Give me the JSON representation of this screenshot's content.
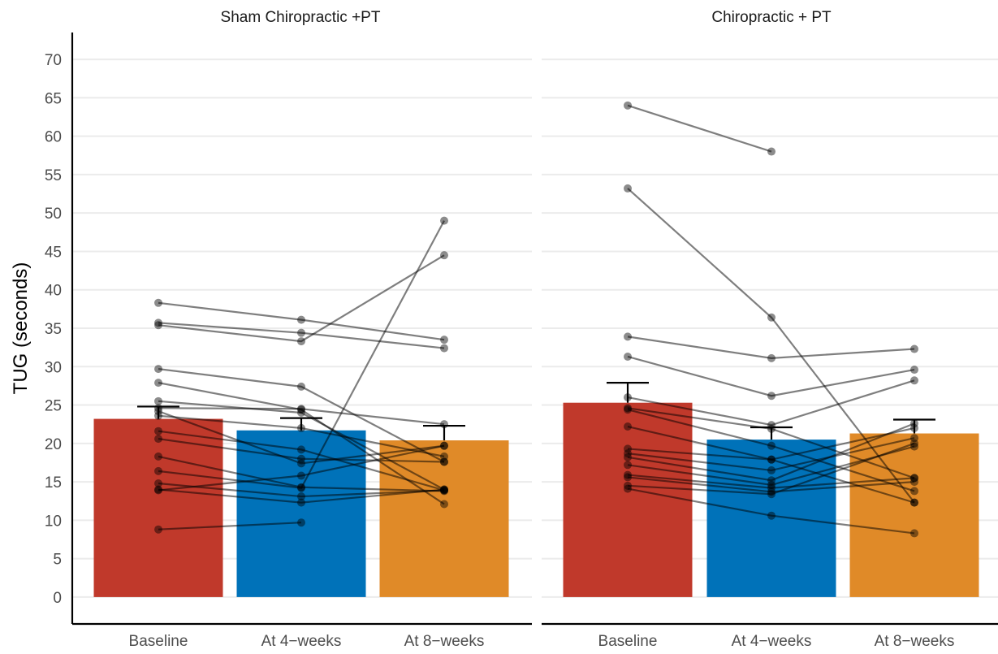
{
  "chart_data": {
    "type": "bar",
    "ylabel": "TUG (seconds)",
    "ylim": [
      -3.5,
      73.5
    ],
    "yticks": [
      0,
      5,
      10,
      15,
      20,
      25,
      30,
      35,
      40,
      45,
      50,
      55,
      60,
      65,
      70
    ],
    "grid": "horizontal",
    "categories": [
      "Baseline",
      "At 4−weeks",
      "At 8−weeks"
    ],
    "colors": {
      "Baseline": "#C0392B",
      "At 4−weeks": "#0072B9",
      "At 8−weeks": "#E08A28"
    },
    "facets": [
      {
        "title": "Sham Chiropractic +PT",
        "means": [
          23.2,
          21.7,
          20.4
        ],
        "error_upper": [
          24.8,
          23.3,
          22.3
        ],
        "subjects": [
          [
            38.3,
            36.1,
            33.5
          ],
          [
            35.7,
            34.4,
            32.4
          ],
          [
            35.4,
            33.3,
            44.5
          ],
          [
            29.7,
            27.4,
            17.6
          ],
          [
            27.9,
            24.4,
            12.1
          ],
          [
            25.5,
            24.0,
            14.0
          ],
          [
            24.6,
            24.5,
            22.5
          ],
          [
            24.2,
            17.4,
            19.7
          ],
          [
            23.6,
            22.0,
            18.3
          ],
          [
            21.6,
            19.2,
            13.9
          ],
          [
            20.6,
            18.0,
            17.6
          ],
          [
            18.3,
            14.3,
            13.8
          ],
          [
            16.4,
            14.2,
            49.0
          ],
          [
            14.8,
            13.1,
            13.9
          ],
          [
            14.0,
            12.3,
            14.0
          ],
          [
            13.9,
            15.8,
            19.7
          ],
          [
            8.8,
            9.7,
            null
          ]
        ]
      },
      {
        "title": "Chiropractic + PT",
        "means": [
          25.3,
          20.5,
          21.3
        ],
        "error_upper": [
          27.9,
          22.1,
          23.1
        ],
        "subjects": [
          [
            64.0,
            58.0,
            null
          ],
          [
            53.2,
            36.4,
            12.3
          ],
          [
            33.9,
            31.1,
            32.3
          ],
          [
            31.3,
            26.2,
            29.6
          ],
          [
            26.0,
            22.4,
            28.2
          ],
          [
            24.6,
            21.9,
            15.5
          ],
          [
            24.4,
            19.7,
            13.8
          ],
          [
            22.2,
            17.9,
            22.0
          ],
          [
            19.3,
            17.9,
            12.3
          ],
          [
            18.7,
            16.5,
            20.7
          ],
          [
            18.2,
            15.2,
            22.6
          ],
          [
            17.2,
            14.6,
            19.6
          ],
          [
            15.9,
            14.2,
            15.5
          ],
          [
            15.6,
            13.7,
            15.0
          ],
          [
            14.5,
            13.4,
            20.0
          ],
          [
            14.1,
            10.6,
            8.3
          ]
        ]
      }
    ]
  }
}
